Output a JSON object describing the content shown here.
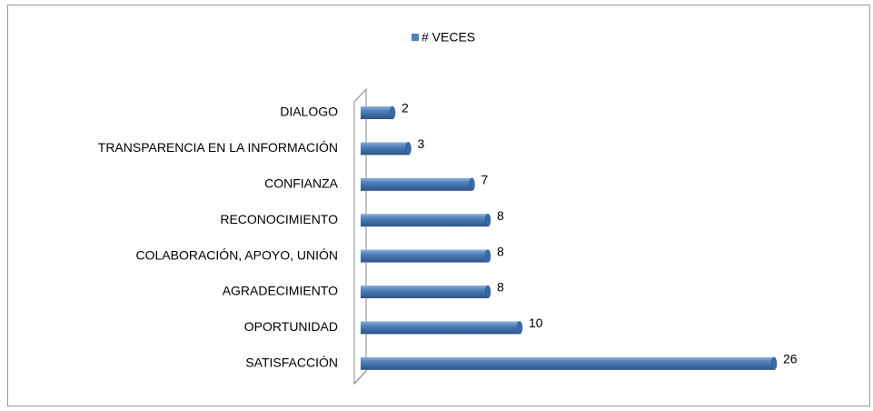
{
  "chart_data": {
    "type": "bar",
    "orientation": "horizontal",
    "categories": [
      "DIALOGO",
      "TRANSPARENCIA EN LA INFORMACIÓN",
      "CONFIANZA",
      "RECONOCIMIENTO",
      "COLABORACIÓN, APOYO, UNIÓN",
      "AGRADECIMIENTO",
      "OPORTUNIDAD",
      "SATISFACCIÓN"
    ],
    "series": [
      {
        "name": "# VECES",
        "color": "#4f81bd",
        "values": [
          2,
          3,
          7,
          8,
          8,
          8,
          10,
          26
        ]
      }
    ],
    "xlim": [
      0,
      26
    ],
    "legend": "top"
  }
}
